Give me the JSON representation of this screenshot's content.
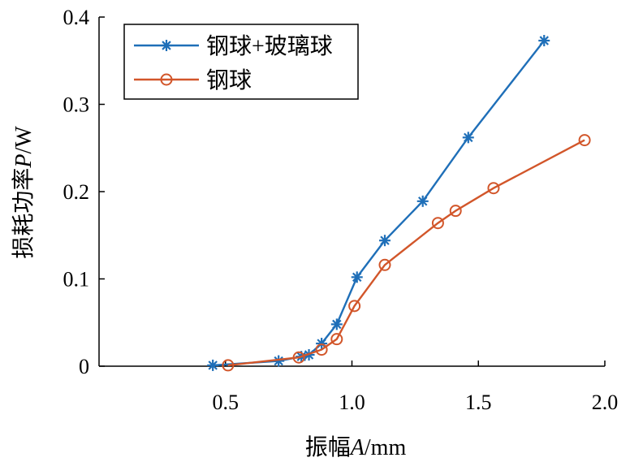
{
  "chart_data": {
    "type": "line",
    "xlabel_parts": [
      "振幅",
      "A",
      "/mm"
    ],
    "ylabel_parts": [
      "损耗功率",
      "P",
      "/W"
    ],
    "xlim": [
      0,
      2.0
    ],
    "ylim": [
      0,
      0.4
    ],
    "xticks": [
      {
        "value": 0.5,
        "label": "0.5"
      },
      {
        "value": 1.0,
        "label": "1.0"
      },
      {
        "value": 1.5,
        "label": "1.5"
      },
      {
        "value": 2.0,
        "label": "2.0"
      }
    ],
    "yticks": [
      {
        "value": 0,
        "label": "0"
      },
      {
        "value": 0.1,
        "label": "0.1"
      },
      {
        "value": 0.2,
        "label": "0.2"
      },
      {
        "value": 0.3,
        "label": "0.3"
      },
      {
        "value": 0.4,
        "label": "0.4"
      }
    ],
    "grid": false,
    "legend_position": "top-left",
    "series": [
      {
        "name": "钢球+玻璃球",
        "color": "#1f6fb8",
        "marker": "asterisk",
        "points": [
          [
            0.45,
            0.001
          ],
          [
            0.71,
            0.006
          ],
          [
            0.8,
            0.011
          ],
          [
            0.83,
            0.013
          ],
          [
            0.88,
            0.026
          ],
          [
            0.94,
            0.048
          ],
          [
            1.02,
            0.102
          ],
          [
            1.13,
            0.144
          ],
          [
            1.28,
            0.189
          ],
          [
            1.46,
            0.262
          ],
          [
            1.76,
            0.373
          ]
        ]
      },
      {
        "name": "钢球",
        "color": "#d2562a",
        "marker": "circle",
        "points": [
          [
            0.51,
            0.001
          ],
          [
            0.79,
            0.01
          ],
          [
            0.88,
            0.019
          ],
          [
            0.94,
            0.031
          ],
          [
            1.01,
            0.069
          ],
          [
            1.13,
            0.116
          ],
          [
            1.34,
            0.164
          ],
          [
            1.41,
            0.178
          ],
          [
            1.56,
            0.204
          ],
          [
            1.92,
            0.259
          ]
        ]
      }
    ]
  }
}
